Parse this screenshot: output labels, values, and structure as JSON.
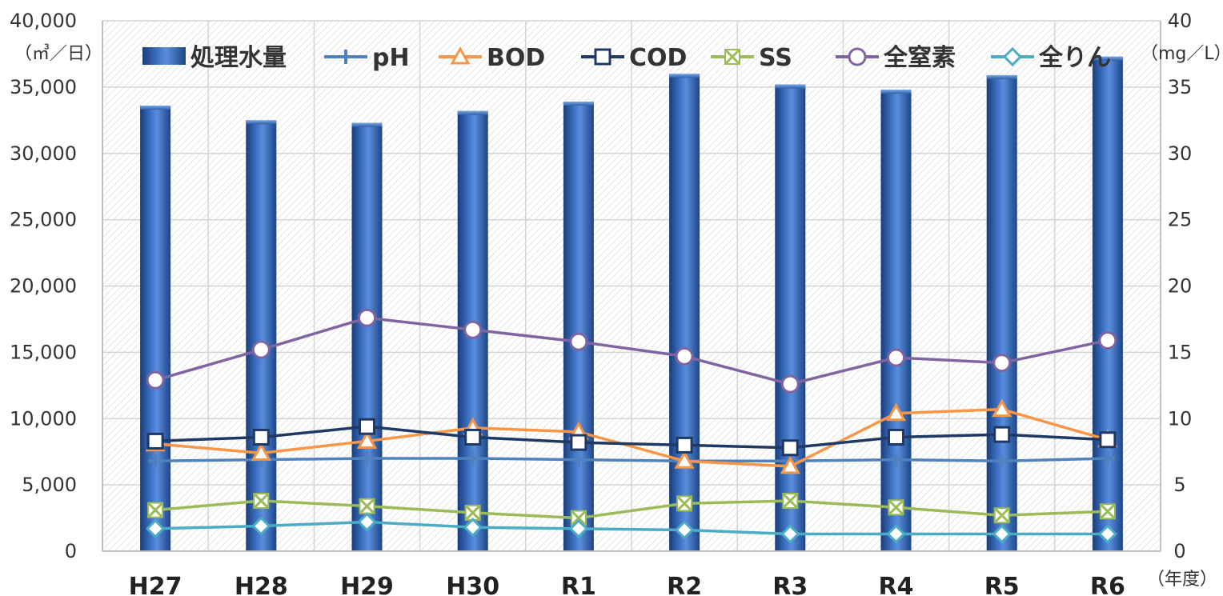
{
  "chart_data": {
    "type": "bar+line",
    "categories": [
      "H27",
      "H28",
      "H29",
      "H30",
      "R1",
      "R2",
      "R3",
      "R4",
      "R5",
      "R6"
    ],
    "y_left": {
      "unit_label": "（㎥／日）",
      "range": [
        0,
        40000
      ],
      "ticks": [
        "0",
        "5,000",
        "10,000",
        "15,000",
        "20,000",
        "25,000",
        "30,000",
        "35,000",
        "40,000"
      ]
    },
    "y_right": {
      "unit_label": "（mg／L）",
      "range": [
        0,
        40
      ],
      "ticks": [
        "0",
        "5",
        "10",
        "15",
        "20",
        "25",
        "30",
        "35",
        "40"
      ]
    },
    "x_unit_label": "（年度）",
    "grid": true,
    "legend_position": "top",
    "bar_series": {
      "name": "処理水量",
      "color": "#2e5fa8",
      "axis": "left",
      "values": [
        33600,
        32500,
        32300,
        33200,
        33900,
        36000,
        35200,
        34800,
        35900,
        37300
      ]
    },
    "line_series": [
      {
        "name": "pH",
        "color": "#4f81bd",
        "marker": "plus",
        "axis": "right",
        "values": [
          6.8,
          6.9,
          7.0,
          7.0,
          6.9,
          6.8,
          6.8,
          6.9,
          6.8,
          7.0
        ]
      },
      {
        "name": "BOD",
        "color": "#f79646",
        "marker": "triangle",
        "axis": "right",
        "values": [
          8.1,
          7.4,
          8.3,
          9.3,
          9.0,
          6.8,
          6.4,
          10.4,
          10.7,
          8.4
        ]
      },
      {
        "name": "COD",
        "color": "#1f3864",
        "marker": "square",
        "axis": "right",
        "values": [
          8.3,
          8.6,
          9.4,
          8.6,
          8.2,
          8.0,
          7.8,
          8.6,
          8.8,
          8.4
        ]
      },
      {
        "name": "SS",
        "color": "#9bbb59",
        "marker": "x",
        "axis": "right",
        "values": [
          3.1,
          3.8,
          3.4,
          2.9,
          2.5,
          3.6,
          3.8,
          3.3,
          2.7,
          3.0
        ]
      },
      {
        "name": "全窒素",
        "color": "#8064a2",
        "marker": "circle",
        "axis": "right",
        "values": [
          12.9,
          15.2,
          17.6,
          16.7,
          15.8,
          14.7,
          12.6,
          14.6,
          14.2,
          15.9
        ]
      },
      {
        "name": "全りん",
        "color": "#4bacc6",
        "marker": "diamond",
        "axis": "right",
        "values": [
          1.7,
          1.9,
          2.2,
          1.8,
          1.7,
          1.6,
          1.3,
          1.3,
          1.3,
          1.3
        ]
      }
    ]
  }
}
